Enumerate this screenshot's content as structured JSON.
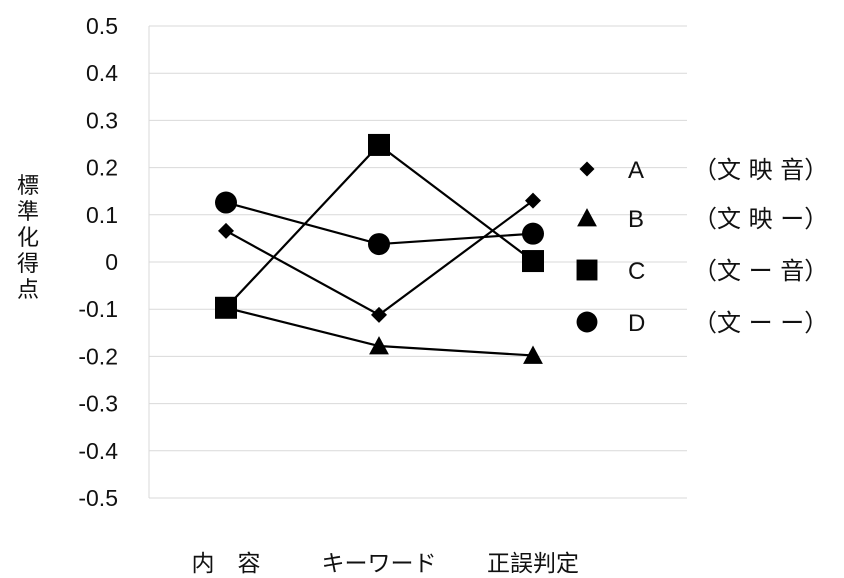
{
  "chart_data": {
    "type": "line",
    "ylabel": "標準化得点",
    "ylim": [
      -0.5,
      0.5
    ],
    "yticks": [
      "0.5",
      "0.4",
      "0.3",
      "0.2",
      "0.1",
      "0",
      "-0.1",
      "-0.2",
      "-0.3",
      "-0.4",
      "-0.5"
    ],
    "categories": [
      "内　容",
      "キーワード",
      "正誤判定"
    ],
    "grid": "horizontal",
    "legend_position": "right",
    "series": [
      {
        "name": "A",
        "condition": "（文 映 音）",
        "marker": "diamond",
        "values": [
          0.066,
          -0.112,
          0.13
        ]
      },
      {
        "name": "B",
        "condition": "（文 映 ー）",
        "marker": "triangle",
        "values": [
          -0.097,
          -0.178,
          -0.198
        ]
      },
      {
        "name": "C",
        "condition": "（文 ー 音）",
        "marker": "square",
        "values": [
          -0.097,
          0.248,
          0.002
        ]
      },
      {
        "name": "D",
        "condition": "（文 ー ー）",
        "marker": "circle",
        "values": [
          0.126,
          0.038,
          0.06
        ]
      }
    ]
  }
}
